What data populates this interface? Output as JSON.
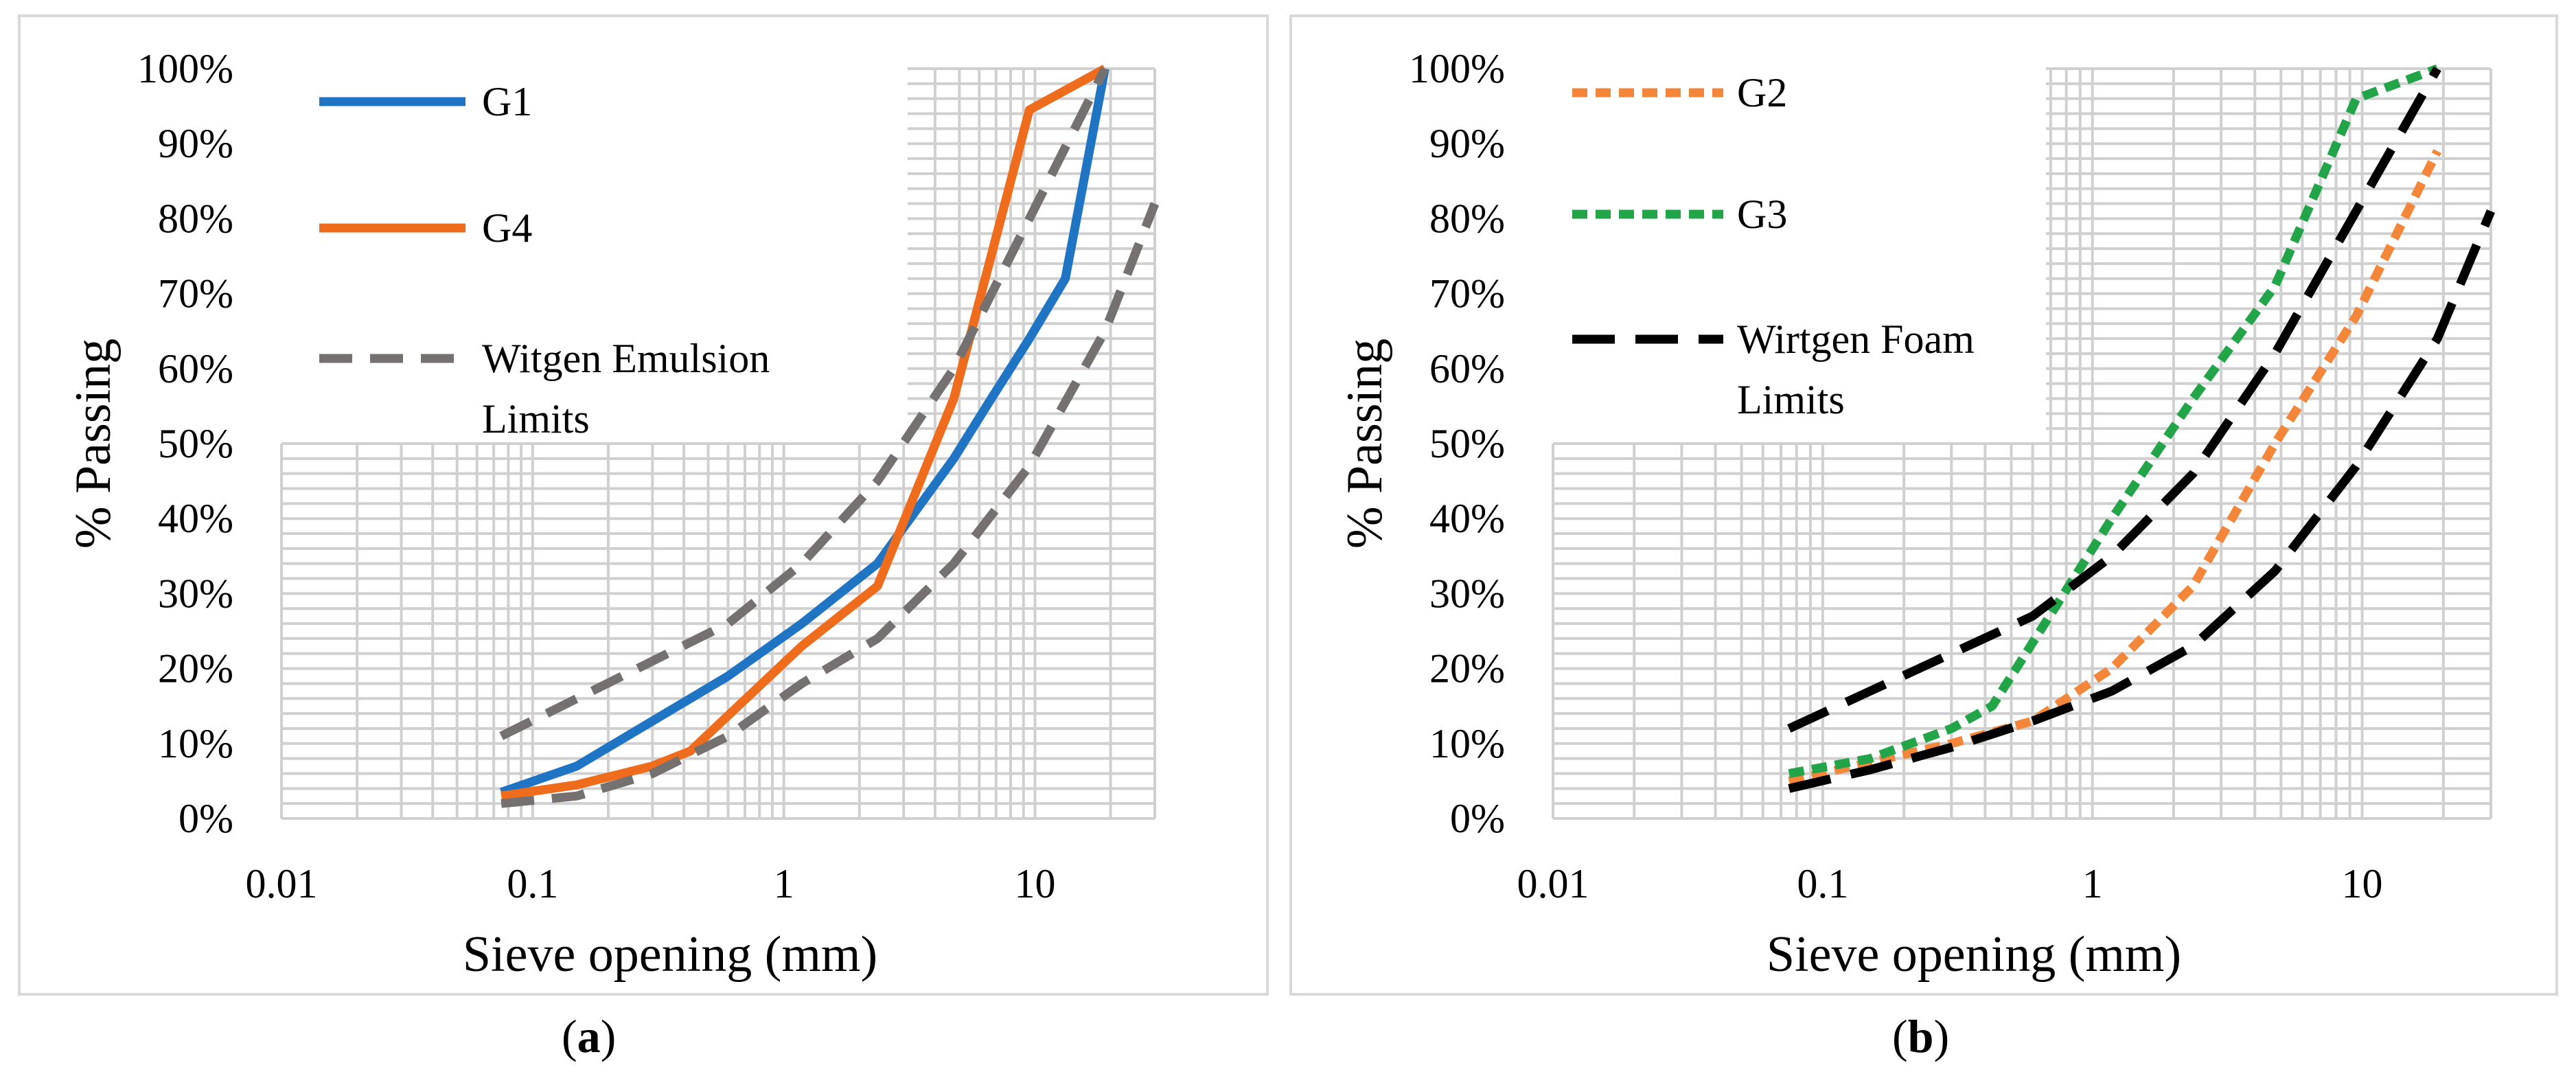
{
  "chart_data": [
    {
      "id": "a",
      "type": "line",
      "caption_letter": "a",
      "xscale": "log",
      "xlim": [
        0.01,
        30
      ],
      "ylim": [
        0,
        100
      ],
      "xlabel": "Sieve opening (mm)",
      "ylabel": "% Passing",
      "x_ticks": [
        0.01,
        0.1,
        1,
        10
      ],
      "x_tick_labels": [
        "0.01",
        "0.1",
        "1",
        "10"
      ],
      "y_ticks": [
        0,
        10,
        20,
        30,
        40,
        50,
        60,
        70,
        80,
        90,
        100
      ],
      "y_tick_labels": [
        "0%",
        "10%",
        "20%",
        "30%",
        "40%",
        "50%",
        "60%",
        "70%",
        "80%",
        "90%",
        "100%"
      ],
      "legend": {
        "placement": "top-left",
        "entries": [
          "G1",
          "G4",
          "Witgen Emulsion Limits"
        ]
      },
      "series": [
        {
          "name": "G1",
          "color": "#1f74c4",
          "style": "solid",
          "x": [
            0.075,
            0.15,
            0.3,
            0.6,
            1.18,
            2.36,
            4.75,
            6.7,
            9.5,
            13.2,
            19
          ],
          "y": [
            3.5,
            7,
            13,
            19,
            26,
            34,
            48,
            56,
            64,
            72,
            100
          ]
        },
        {
          "name": "G4",
          "color": "#ef6c1c",
          "style": "solid",
          "x": [
            0.075,
            0.15,
            0.3,
            0.425,
            1.18,
            2.36,
            4.75,
            9.5,
            19
          ],
          "y": [
            3,
            4.5,
            7,
            9,
            23,
            31,
            56,
            94.5,
            100
          ]
        },
        {
          "name": "Witgen Emulsion Limits (upper)",
          "color": "#767171",
          "style": "dashed",
          "legend": false,
          "x": [
            0.075,
            0.15,
            0.3,
            0.6,
            1.18,
            2.36,
            4.75,
            9.5,
            19
          ],
          "y": [
            11,
            16,
            21,
            26,
            34,
            45,
            60,
            80,
            100
          ]
        },
        {
          "name": "Witgen Emulsion Limits (lower)",
          "color": "#767171",
          "style": "dashed",
          "legend": false,
          "x": [
            0.075,
            0.15,
            0.3,
            0.6,
            1.18,
            2.36,
            4.75,
            9.5,
            19,
            30
          ],
          "y": [
            2,
            3,
            6,
            11,
            18,
            24,
            34,
            47,
            65,
            82
          ]
        }
      ]
    },
    {
      "id": "b",
      "type": "line",
      "caption_letter": "b",
      "xscale": "log",
      "xlim": [
        0.01,
        30
      ],
      "ylim": [
        0,
        100
      ],
      "xlabel": "Sieve opening (mm)",
      "ylabel": "% Passing",
      "x_ticks": [
        0.01,
        0.1,
        1,
        10
      ],
      "x_tick_labels": [
        "0.01",
        "0.1",
        "1",
        "10"
      ],
      "y_ticks": [
        0,
        10,
        20,
        30,
        40,
        50,
        60,
        70,
        80,
        90,
        100
      ],
      "y_tick_labels": [
        "0%",
        "10%",
        "20%",
        "30%",
        "40%",
        "50%",
        "60%",
        "70%",
        "80%",
        "90%",
        "100%"
      ],
      "legend": {
        "placement": "top-left",
        "entries": [
          "G2",
          "G3",
          "Wirtgen Foam Limits"
        ]
      },
      "series": [
        {
          "name": "G2",
          "color": "#f4863a",
          "style": "dotted",
          "x": [
            0.075,
            0.15,
            0.3,
            0.6,
            1.18,
            2.36,
            4.75,
            9.5,
            19
          ],
          "y": [
            5,
            7.5,
            10,
            13,
            20,
            31,
            50,
            67,
            89
          ]
        },
        {
          "name": "G3",
          "color": "#21a548",
          "style": "dotted",
          "x": [
            0.075,
            0.15,
            0.3,
            0.425,
            1.18,
            2.36,
            4.75,
            9.5,
            19
          ],
          "y": [
            6,
            8,
            12,
            15,
            40,
            56,
            71,
            96,
            100
          ]
        },
        {
          "name": "Wirtgen Foam Limits (upper)",
          "color": "#000000",
          "style": "longdash",
          "legend": false,
          "x": [
            0.075,
            0.15,
            0.3,
            0.6,
            1.18,
            2.36,
            4.75,
            9.5,
            19
          ],
          "y": [
            12,
            17,
            22,
            27,
            35,
            46,
            62,
            81,
            100
          ]
        },
        {
          "name": "Wirtgen Foam Limits (lower)",
          "color": "#000000",
          "style": "longdash",
          "legend": false,
          "x": [
            0.075,
            0.15,
            0.3,
            0.6,
            1.18,
            2.36,
            4.75,
            9.5,
            19,
            30
          ],
          "y": [
            4,
            6.5,
            9.5,
            13,
            17,
            23,
            33,
            47,
            64,
            81
          ]
        }
      ]
    }
  ]
}
